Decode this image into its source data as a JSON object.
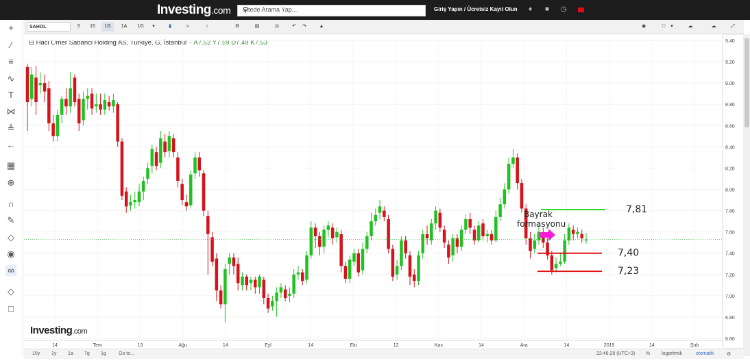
{
  "header": {
    "logo_main": "Investing",
    "logo_suffix": ".com",
    "search_placeholder": "Sitede Arama Yap...",
    "login_text": "Giriş Yapın / Ücretsiz Kayıt Olun"
  },
  "toolbar": {
    "symbol": "SAHOL",
    "intervals": [
      "5",
      "15",
      "1G",
      "1A",
      "1G"
    ],
    "active_interval": "1G"
  },
  "legend": {
    "title": "Haci Omer Sabanci Holding AS, Türkiye, G, İstanbul",
    "open": "A7.52",
    "high": "Y7.59",
    "low": "D7.49",
    "close": "K7.53"
  },
  "bottom": {
    "ranges": [
      "10y",
      "1y",
      "1a",
      "7g",
      "1g",
      "Go to..."
    ],
    "time": "22:46:28 (UTC+3)",
    "pct": "%",
    "log": "logaritmik",
    "auto": "otomatik"
  },
  "watermark": {
    "main": "Investing",
    "suffix": ".com"
  },
  "colors": {
    "up": "#22c122",
    "down": "#d4141c",
    "price_line": "#3cb43c",
    "annotation_green": "#33dd33",
    "annotation_red": "#e01010",
    "arrow": "#ff1ad9"
  },
  "chart_data": {
    "type": "candlestick",
    "y_axis": {
      "min": 6.6,
      "max": 9.4,
      "ticks": [
        "9.40",
        "9.20",
        "9.00",
        "8.80",
        "8.60",
        "8.40",
        "8.20",
        "8.00",
        "7.80",
        "7.60",
        "7.40",
        "7.20",
        "7.00",
        "6.80",
        "6.60"
      ]
    },
    "x_axis_labels": [
      "14",
      "Tem",
      "13",
      "Ağu",
      "14",
      "Eyl",
      "14",
      "Eki",
      "12",
      "Kas",
      "14",
      "Ara",
      "14",
      "2019",
      "14",
      "Şub"
    ],
    "last_price": "7.53",
    "candles": [
      [
        9.15,
        8.82,
        9.18,
        8.55
      ],
      [
        8.85,
        9.08,
        9.15,
        8.78
      ],
      [
        9.05,
        8.82,
        9.16,
        8.7
      ],
      [
        8.98,
        9.0,
        9.1,
        8.9
      ],
      [
        9.0,
        8.92,
        9.08,
        8.82
      ],
      [
        8.95,
        8.62,
        9.02,
        8.55
      ],
      [
        8.62,
        8.5,
        8.7,
        8.45
      ],
      [
        8.5,
        8.7,
        8.75,
        8.45
      ],
      [
        8.7,
        8.85,
        8.88,
        8.62
      ],
      [
        8.85,
        8.78,
        8.95,
        8.7
      ],
      [
        8.78,
        8.95,
        9.1,
        8.72
      ],
      [
        9.05,
        8.82,
        9.08,
        8.78
      ],
      [
        8.85,
        8.62,
        8.9,
        8.55
      ],
      [
        8.65,
        8.85,
        8.92,
        8.6
      ],
      [
        8.85,
        8.88,
        8.95,
        8.75
      ],
      [
        8.9,
        8.76,
        8.95,
        8.7
      ],
      [
        8.78,
        8.8,
        8.9,
        8.72
      ],
      [
        8.8,
        8.75,
        8.9,
        8.7
      ],
      [
        8.75,
        8.84,
        8.9,
        8.7
      ],
      [
        8.82,
        8.78,
        8.88,
        8.74
      ],
      [
        8.78,
        8.84,
        8.9,
        8.72
      ],
      [
        8.8,
        8.45,
        8.82,
        8.4
      ],
      [
        8.45,
        7.94,
        8.48,
        7.9
      ],
      [
        7.98,
        7.84,
        8.02,
        7.78
      ],
      [
        7.85,
        7.88,
        7.95,
        7.8
      ],
      [
        7.88,
        7.9,
        7.98,
        7.82
      ],
      [
        7.88,
        7.98,
        8.05,
        7.84
      ],
      [
        7.98,
        8.08,
        8.12,
        7.9
      ],
      [
        8.1,
        8.2,
        8.25,
        8.05
      ],
      [
        8.22,
        8.38,
        8.42,
        8.15
      ],
      [
        8.35,
        8.22,
        8.4,
        8.18
      ],
      [
        8.25,
        8.48,
        8.55,
        8.2
      ],
      [
        8.45,
        8.35,
        8.52,
        8.3
      ],
      [
        8.36,
        8.5,
        8.55,
        8.3
      ],
      [
        8.48,
        8.35,
        8.52,
        8.3
      ],
      [
        8.3,
        8.08,
        8.35,
        8.02
      ],
      [
        8.05,
        7.9,
        8.1,
        7.85
      ],
      [
        7.88,
        7.84,
        7.95,
        7.8
      ],
      [
        7.85,
        8.14,
        8.18,
        7.82
      ],
      [
        8.15,
        8.3,
        8.35,
        8.1
      ],
      [
        8.3,
        8.18,
        8.35,
        8.12
      ],
      [
        8.15,
        7.8,
        8.18,
        7.75
      ],
      [
        7.75,
        7.58,
        7.8,
        7.2
      ],
      [
        7.55,
        7.32,
        7.6,
        7.28
      ],
      [
        7.35,
        7.05,
        7.4,
        6.95
      ],
      [
        7.05,
        6.92,
        7.1,
        6.88
      ],
      [
        6.92,
        7.25,
        7.3,
        6.75
      ],
      [
        7.3,
        7.36,
        7.4,
        7.2
      ],
      [
        7.36,
        7.28,
        7.4,
        7.2
      ],
      [
        7.3,
        7.12,
        7.36,
        7.05
      ],
      [
        7.1,
        7.18,
        7.22,
        7.05
      ],
      [
        7.18,
        7.1,
        7.2,
        7.05
      ],
      [
        7.12,
        7.15,
        7.18,
        7.05
      ],
      [
        7.15,
        7.08,
        7.18,
        7.02
      ],
      [
        7.08,
        7.18,
        7.2,
        7.02
      ],
      [
        7.15,
        6.98,
        7.18,
        6.92
      ],
      [
        6.98,
        6.88,
        7.02,
        6.84
      ],
      [
        6.9,
        6.95,
        7.0,
        6.86
      ],
      [
        6.95,
        7.03,
        7.08,
        6.8
      ],
      [
        7.03,
        7.08,
        7.12,
        6.98
      ],
      [
        7.06,
        6.98,
        7.1,
        6.95
      ],
      [
        7.0,
        7.02,
        7.08,
        6.94
      ],
      [
        7.02,
        7.2,
        7.25,
        6.98
      ],
      [
        7.2,
        7.22,
        7.28,
        7.15
      ],
      [
        7.22,
        7.14,
        7.25,
        7.1
      ],
      [
        7.15,
        7.38,
        7.42,
        7.12
      ],
      [
        7.38,
        7.64,
        7.7,
        7.35
      ],
      [
        7.64,
        7.56,
        7.68,
        7.45
      ],
      [
        7.56,
        7.46,
        7.6,
        7.38
      ],
      [
        7.46,
        7.62,
        7.66,
        7.4
      ],
      [
        7.62,
        7.66,
        7.7,
        7.55
      ],
      [
        7.64,
        7.54,
        7.68,
        7.48
      ],
      [
        7.55,
        7.6,
        7.64,
        7.5
      ],
      [
        7.58,
        7.28,
        7.62,
        7.22
      ],
      [
        7.28,
        7.16,
        7.32,
        7.12
      ],
      [
        7.16,
        7.34,
        7.38,
        7.12
      ],
      [
        7.32,
        7.4,
        7.44,
        7.28
      ],
      [
        7.4,
        7.22,
        7.44,
        7.18
      ],
      [
        7.24,
        7.44,
        7.5,
        7.2
      ],
      [
        7.44,
        7.56,
        7.6,
        7.4
      ],
      [
        7.56,
        7.7,
        7.78,
        7.52
      ],
      [
        7.7,
        7.76,
        7.82,
        7.66
      ],
      [
        7.78,
        7.84,
        7.9,
        7.72
      ],
      [
        7.8,
        7.74,
        7.84,
        7.7
      ],
      [
        7.72,
        7.44,
        7.76,
        7.4
      ],
      [
        7.44,
        7.18,
        7.48,
        7.14
      ],
      [
        7.2,
        7.28,
        7.34,
        7.15
      ],
      [
        7.28,
        7.52,
        7.56,
        7.24
      ],
      [
        7.52,
        7.4,
        7.56,
        7.35
      ],
      [
        7.38,
        7.18,
        7.42,
        7.1
      ],
      [
        7.2,
        7.14,
        7.25,
        7.08
      ],
      [
        7.14,
        7.38,
        7.42,
        7.1
      ],
      [
        7.4,
        7.58,
        7.62,
        7.35
      ],
      [
        7.58,
        7.54,
        7.66,
        7.48
      ],
      [
        7.52,
        7.68,
        7.72,
        7.48
      ],
      [
        7.68,
        7.8,
        7.84,
        7.62
      ],
      [
        7.78,
        7.64,
        7.82,
        7.6
      ],
      [
        7.62,
        7.5,
        7.66,
        7.45
      ],
      [
        7.48,
        7.36,
        7.52,
        7.3
      ],
      [
        7.38,
        7.54,
        7.58,
        7.32
      ],
      [
        7.54,
        7.46,
        7.58,
        7.4
      ],
      [
        7.46,
        7.62,
        7.66,
        7.42
      ],
      [
        7.62,
        7.72,
        7.76,
        7.58
      ],
      [
        7.72,
        7.64,
        7.78,
        7.58
      ],
      [
        7.62,
        7.52,
        7.66,
        7.48
      ],
      [
        7.52,
        7.66,
        7.7,
        7.5
      ],
      [
        7.68,
        7.56,
        7.72,
        7.52
      ],
      [
        7.56,
        7.58,
        7.62,
        7.5
      ],
      [
        7.58,
        7.52,
        7.62,
        7.48
      ],
      [
        7.52,
        7.74,
        7.8,
        7.5
      ],
      [
        7.74,
        7.86,
        7.92,
        7.7
      ],
      [
        7.86,
        8.0,
        8.06,
        7.82
      ],
      [
        8.0,
        8.24,
        8.3,
        7.96
      ],
      [
        8.24,
        8.3,
        8.38,
        8.2
      ],
      [
        8.3,
        8.06,
        8.34,
        8.0
      ],
      [
        8.06,
        7.82,
        8.1,
        7.78
      ],
      [
        7.82,
        7.54,
        7.86,
        7.48
      ],
      [
        7.54,
        7.42,
        7.6,
        7.35
      ],
      [
        7.44,
        7.52,
        7.58,
        7.4
      ],
      [
        7.52,
        7.6,
        7.66,
        7.48
      ],
      [
        7.58,
        7.5,
        7.64,
        7.45
      ],
      [
        7.5,
        7.38,
        7.54,
        7.34
      ],
      [
        7.38,
        7.24,
        7.42,
        7.2
      ],
      [
        7.26,
        7.3,
        7.36,
        7.22
      ],
      [
        7.3,
        7.32,
        7.4,
        7.28
      ],
      [
        7.32,
        7.52,
        7.58,
        7.3
      ],
      [
        7.52,
        7.64,
        7.68,
        7.48
      ],
      [
        7.62,
        7.58,
        7.66,
        7.52
      ],
      [
        7.58,
        7.6,
        7.64,
        7.54
      ],
      [
        7.58,
        7.54,
        7.62,
        7.5
      ],
      [
        7.52,
        7.53,
        7.59,
        7.49
      ]
    ]
  },
  "annotations": {
    "pattern_label": "Bayrak formasyonu",
    "level_high": "7,81",
    "level_mid": "7,40",
    "level_low": "7,23"
  }
}
